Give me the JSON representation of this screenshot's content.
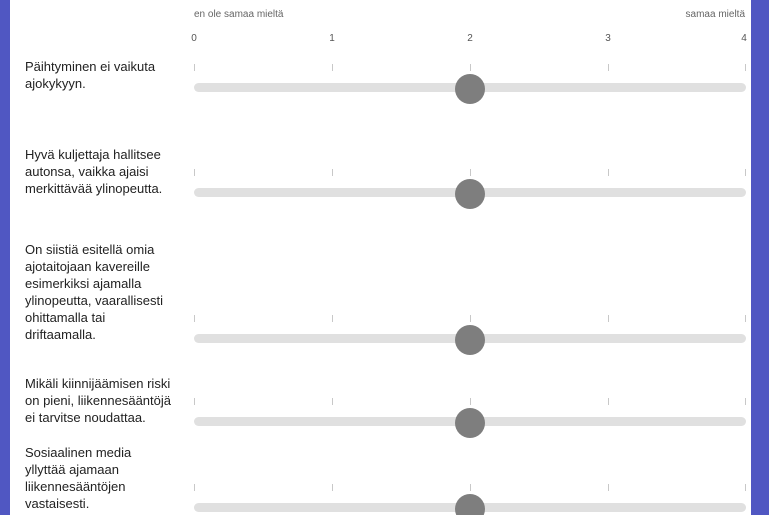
{
  "scale": {
    "min_label": "en ole samaa mieltä",
    "max_label": "samaa mieltä",
    "ticks": [
      "0",
      "1",
      "2",
      "3",
      "4"
    ],
    "min": 0,
    "max": 4
  },
  "colors": {
    "background": "#5057c2",
    "track": "#e0e0e0",
    "thumb": "#7e7e7e"
  },
  "statements": [
    {
      "text": "Päihtyminen ei vaikuta ajokykyyn.",
      "value": 2
    },
    {
      "text": "Hyvä kuljettaja hallitsee autonsa, vaikka ajaisi merkittävää ylinopeutta.",
      "value": 2
    },
    {
      "text": "On siistiä esitellä omia ajotaitojaan kavereille esimerkiksi ajamalla ylinopeutta, vaarallisesti ohittamalla tai driftaamalla.",
      "value": 2
    },
    {
      "text": "Mikäli kiinnijäämisen riski on pieni, liikennesääntöjä ei tarvitse noudattaa.",
      "value": 2
    },
    {
      "text": "Sosiaalinen media yllyttää ajamaan liikennesääntöjen vastaisesti.",
      "value": 2
    }
  ]
}
